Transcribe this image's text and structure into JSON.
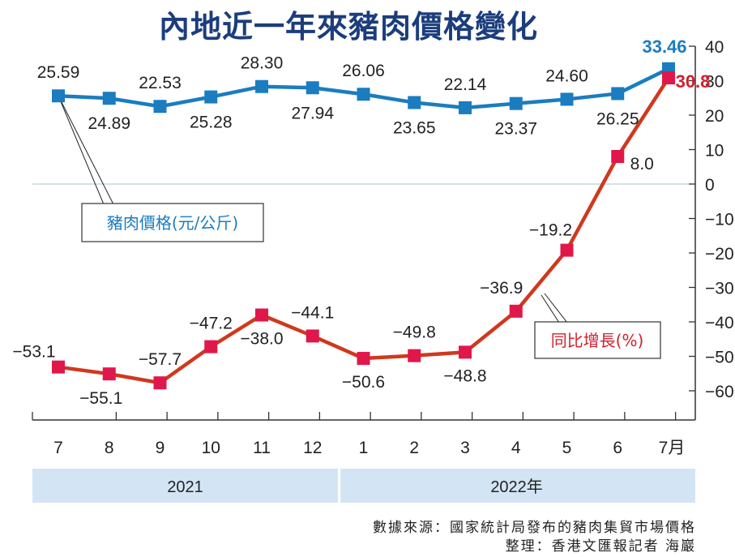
{
  "title": "內地近一年來豬肉價格變化",
  "chart_data": {
    "type": "line",
    "categories": [
      "7",
      "8",
      "9",
      "10",
      "11",
      "12",
      "1",
      "2",
      "3",
      "4",
      "5",
      "6",
      "7月"
    ],
    "year_groups": [
      {
        "label": "2021",
        "months": [
          "7",
          "8",
          "9",
          "10",
          "11",
          "12"
        ]
      },
      {
        "label": "2022年",
        "months": [
          "1",
          "2",
          "3",
          "4",
          "5",
          "6",
          "7月"
        ]
      }
    ],
    "ylim": [
      -60,
      40
    ],
    "yticks": [
      "40",
      "30",
      "20",
      "10",
      "0",
      "−10",
      "−20",
      "−30",
      "−40",
      "−50",
      "−60"
    ],
    "ytick_values": [
      40,
      30,
      20,
      10,
      0,
      -10,
      -20,
      -30,
      -40,
      -50,
      -60
    ],
    "series": [
      {
        "name": "豬肉價格(元/公斤)",
        "color": "#1b7cc0",
        "values": [
          25.59,
          24.89,
          22.53,
          25.28,
          28.3,
          27.94,
          26.06,
          23.65,
          22.14,
          23.37,
          24.6,
          26.25,
          33.46
        ],
        "labels": [
          "25.59",
          "24.89",
          "22.53",
          "25.28",
          "28.30",
          "27.94",
          "26.06",
          "23.65",
          "22.14",
          "23.37",
          "24.60",
          "26.25",
          "33.46"
        ]
      },
      {
        "name": "同比增長(%)",
        "color": "#d0381e",
        "marker_color": "#e0174a",
        "values": [
          -53.1,
          -55.1,
          -57.7,
          -47.2,
          -38.0,
          -44.1,
          -50.6,
          -49.8,
          -48.8,
          -36.9,
          -19.2,
          8.0,
          30.8
        ],
        "labels": [
          "−53.1",
          "−55.1",
          "−57.7",
          "−47.2",
          "−38.0",
          "−44.1",
          "−50.6",
          "−49.8",
          "−48.8",
          "−36.9",
          "−19.2",
          "8.0",
          "30.8"
        ]
      }
    ],
    "grid": false,
    "zero_line": true
  },
  "source": "數據來源：國家統計局發布的豬肉集貿市場價格",
  "credit": "整理：香港文匯報記者 海巖"
}
